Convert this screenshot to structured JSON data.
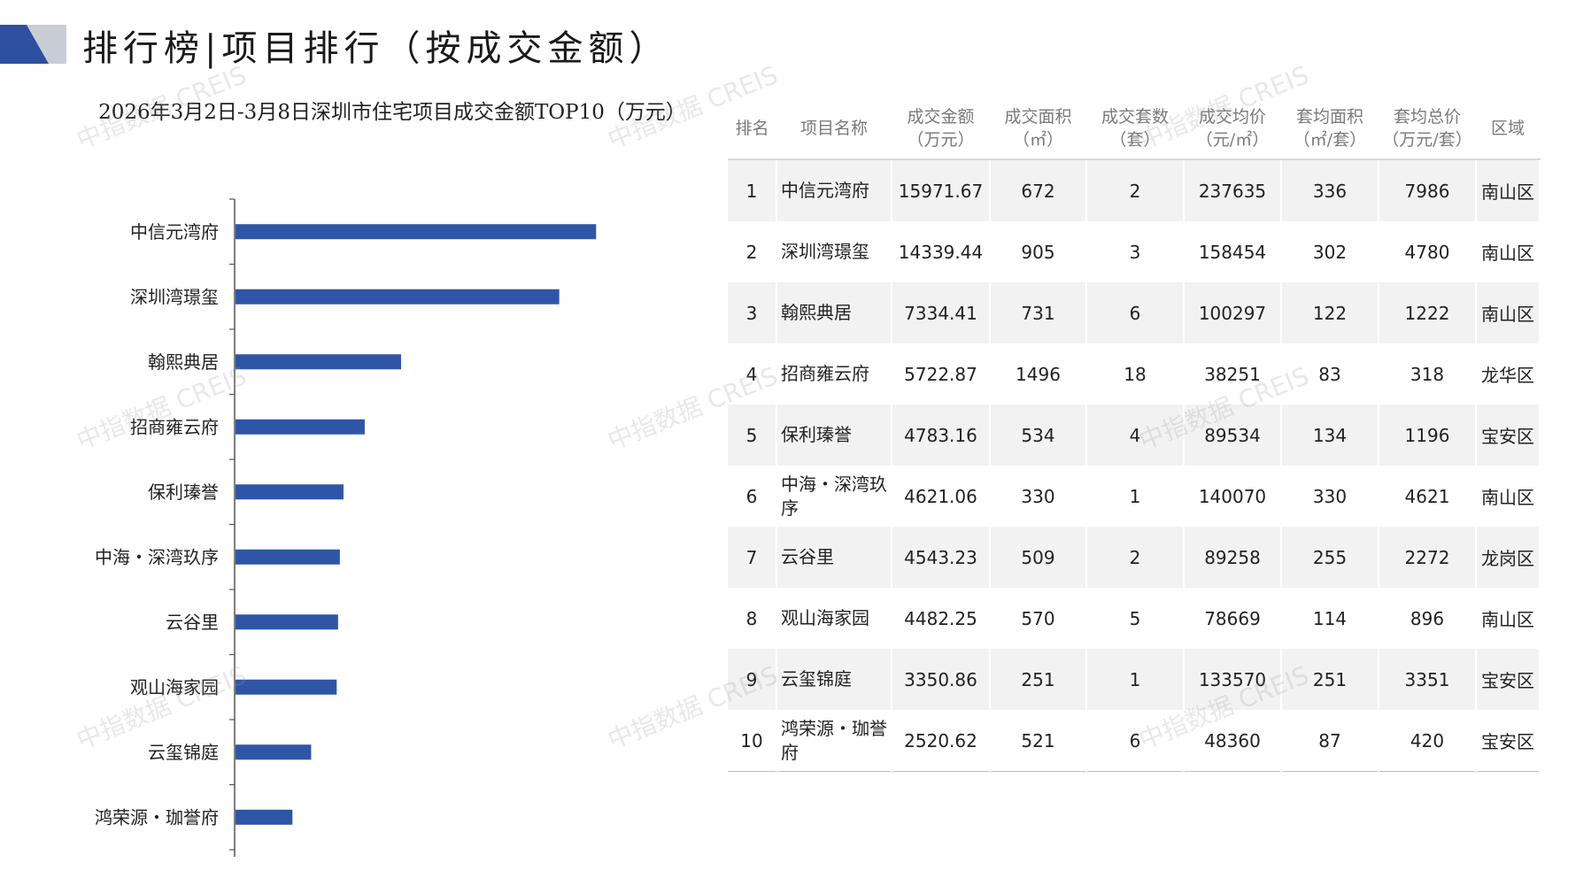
{
  "header": {
    "title": "排行榜|项目排行（按成交金额）",
    "deco_colors": [
      "#2f4f9f",
      "#c9ced6"
    ]
  },
  "watermark": "中指数据 CREIS",
  "chart_data": {
    "type": "bar",
    "orientation": "horizontal",
    "title": "2026年3月2日-3月8日深圳市住宅项目成交金额TOP10（万元）",
    "categories": [
      "中信元湾府",
      "深圳湾璟玺",
      "翰熙典居",
      "招商雍云府",
      "保利瑧誉",
      "中海・深湾玖序",
      "云谷里",
      "观山海家园",
      "云玺锦庭",
      "鸿荣源・珈誉府"
    ],
    "values": [
      15971.67,
      14339.44,
      7334.41,
      5722.87,
      4783.16,
      4621.06,
      4543.23,
      4482.25,
      3350.86,
      2520.62
    ],
    "xlim": [
      0,
      20000
    ],
    "bar_color": "#2f56a6",
    "grid": false,
    "legend": "none"
  },
  "table": {
    "headers": [
      "排名",
      "项目名称",
      "成交金额（万元）",
      "成交面积（㎡）",
      "成交套数（套）",
      "成交均价（元/㎡）",
      "套均面积（㎡/套）",
      "套均总价（万元/套）",
      "区域"
    ],
    "headers_lines": [
      [
        "排名"
      ],
      [
        "项目名称"
      ],
      [
        "成交金额",
        "（万元）"
      ],
      [
        "成交面积",
        "（㎡）"
      ],
      [
        "成交套数",
        "（套）"
      ],
      [
        "成交均价",
        "（元/㎡）"
      ],
      [
        "套均面积",
        "（㎡/套）"
      ],
      [
        "套均总价",
        "（万元/套）"
      ],
      [
        "区域"
      ]
    ],
    "rows": [
      [
        "1",
        "中信元湾府",
        "15971.67",
        "672",
        "2",
        "237635",
        "336",
        "7986",
        "南山区"
      ],
      [
        "2",
        "深圳湾璟玺",
        "14339.44",
        "905",
        "3",
        "158454",
        "302",
        "4780",
        "南山区"
      ],
      [
        "3",
        "翰熙典居",
        "7334.41",
        "731",
        "6",
        "100297",
        "122",
        "1222",
        "南山区"
      ],
      [
        "4",
        "招商雍云府",
        "5722.87",
        "1496",
        "18",
        "38251",
        "83",
        "318",
        "龙华区"
      ],
      [
        "5",
        "保利瑧誉",
        "4783.16",
        "534",
        "4",
        "89534",
        "134",
        "1196",
        "宝安区"
      ],
      [
        "6",
        "中海・深湾玖序",
        "4621.06",
        "330",
        "1",
        "140070",
        "330",
        "4621",
        "南山区"
      ],
      [
        "7",
        "云谷里",
        "4543.23",
        "509",
        "2",
        "89258",
        "255",
        "2272",
        "龙岗区"
      ],
      [
        "8",
        "观山海家园",
        "4482.25",
        "570",
        "5",
        "78669",
        "114",
        "896",
        "南山区"
      ],
      [
        "9",
        "云玺锦庭",
        "3350.86",
        "251",
        "1",
        "133570",
        "251",
        "3351",
        "宝安区"
      ],
      [
        "10",
        "鸿荣源・珈誉府",
        "2520.62",
        "521",
        "6",
        "48360",
        "87",
        "420",
        "宝安区"
      ]
    ]
  }
}
